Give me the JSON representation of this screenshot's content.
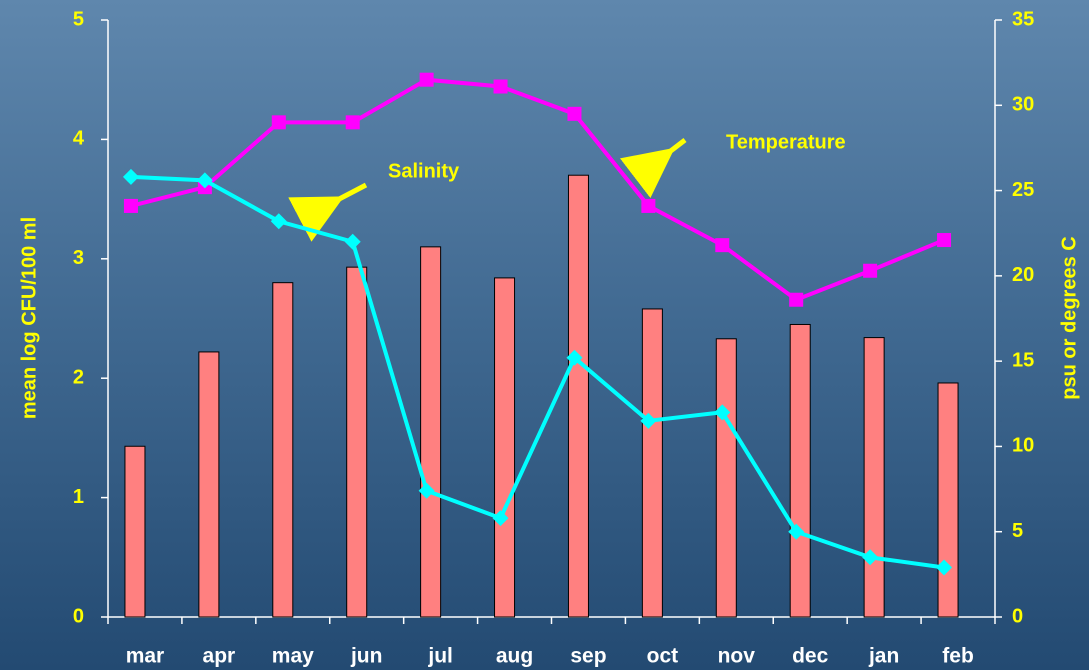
{
  "chart_data": {
    "type": "bar_line",
    "categories": [
      "mar",
      "apr",
      "may",
      "jun",
      "jul",
      "aug",
      "sep",
      "oct",
      "nov",
      "dec",
      "jan",
      "feb"
    ],
    "series": [
      {
        "type": "bar",
        "color": "#ff8080",
        "values": [
          1.43,
          2.22,
          2.8,
          2.93,
          3.1,
          2.84,
          3.7,
          2.58,
          2.33,
          2.45,
          2.34,
          1.96
        ]
      },
      {
        "type": "line",
        "name": "Temperature",
        "color": "#ff00ff",
        "axis": "y2",
        "values": [
          24.1,
          25.2,
          29,
          29,
          31.5,
          31.1,
          29.5,
          24.1,
          21.8,
          18.6,
          20.3,
          22.1
        ]
      },
      {
        "type": "line",
        "name": "Salinity",
        "color": "#00ffff",
        "axis": "y2",
        "values": [
          25.8,
          25.6,
          23.2,
          22,
          7.4,
          5.8,
          15.2,
          11.5,
          12,
          5,
          3.5,
          2.9
        ]
      }
    ],
    "ylabel": "mean log CFU/100 ml",
    "y2label": "psu or degrees C",
    "ylim": [
      0,
      5
    ],
    "yticks": [
      0,
      1,
      2,
      3,
      4,
      5
    ],
    "y2lim": [
      0,
      35
    ],
    "y2ticks": [
      0,
      5,
      10,
      15,
      20,
      25,
      30,
      35
    ]
  }
}
